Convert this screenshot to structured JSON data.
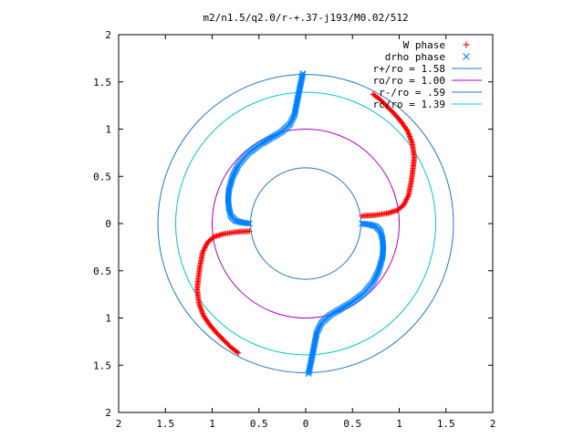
{
  "chart_data": {
    "type": "scatter",
    "title": "m2/n1.5/q2.0/r-+.37-j193/M0.02/512",
    "xlim": [
      -2,
      2
    ],
    "ylim": [
      -2,
      2
    ],
    "x_ticks": [
      {
        "value": -2,
        "label": "2"
      },
      {
        "value": -1.5,
        "label": "1.5"
      },
      {
        "value": -1,
        "label": "1"
      },
      {
        "value": -0.5,
        "label": "0.5"
      },
      {
        "value": 0,
        "label": "0"
      },
      {
        "value": 0.5,
        "label": "0.5"
      },
      {
        "value": 1,
        "label": "1"
      },
      {
        "value": 1.5,
        "label": "1.5"
      },
      {
        "value": 2,
        "label": "2"
      }
    ],
    "y_ticks": [
      {
        "value": 2,
        "label": "2"
      },
      {
        "value": 1.5,
        "label": "1.5"
      },
      {
        "value": 1,
        "label": "1"
      },
      {
        "value": 0.5,
        "label": "0.5"
      },
      {
        "value": 0,
        "label": "0"
      },
      {
        "value": -0.5,
        "label": "0.5"
      },
      {
        "value": -1,
        "label": "1"
      },
      {
        "value": -1.5,
        "label": "1.5"
      },
      {
        "value": -2,
        "label": "2"
      }
    ],
    "legend_position": "top-right",
    "series": [
      {
        "name": "W phase",
        "marker": "+",
        "color": "#ff0000",
        "branches": [
          [
            [
              0.6,
              0.08
            ],
            [
              0.75,
              0.09
            ],
            [
              0.88,
              0.11
            ],
            [
              0.98,
              0.14
            ],
            [
              1.05,
              0.2
            ],
            [
              1.1,
              0.3
            ],
            [
              1.13,
              0.45
            ],
            [
              1.15,
              0.6
            ],
            [
              1.16,
              0.7
            ],
            [
              1.14,
              0.85
            ],
            [
              1.09,
              0.98
            ],
            [
              1.02,
              1.08
            ],
            [
              0.95,
              1.16
            ],
            [
              0.86,
              1.25
            ],
            [
              0.8,
              1.31
            ],
            [
              0.76,
              1.34
            ],
            [
              0.72,
              1.37
            ]
          ],
          [
            [
              -0.6,
              -0.08
            ],
            [
              -0.75,
              -0.09
            ],
            [
              -0.88,
              -0.11
            ],
            [
              -0.98,
              -0.14
            ],
            [
              -1.05,
              -0.2
            ],
            [
              -1.1,
              -0.3
            ],
            [
              -1.13,
              -0.45
            ],
            [
              -1.15,
              -0.6
            ],
            [
              -1.16,
              -0.7
            ],
            [
              -1.14,
              -0.85
            ],
            [
              -1.09,
              -0.98
            ],
            [
              -1.02,
              -1.08
            ],
            [
              -0.95,
              -1.16
            ],
            [
              -0.86,
              -1.25
            ],
            [
              -0.8,
              -1.31
            ],
            [
              -0.76,
              -1.34
            ],
            [
              -0.72,
              -1.37
            ]
          ]
        ]
      },
      {
        "name": "drho phase",
        "marker": "x",
        "color": "#0080ff",
        "branches": [
          [
            [
              -0.6,
              0.0
            ],
            [
              -0.68,
              0.01
            ],
            [
              -0.75,
              0.03
            ],
            [
              -0.8,
              0.08
            ],
            [
              -0.82,
              0.16
            ],
            [
              -0.83,
              0.26
            ],
            [
              -0.82,
              0.36
            ],
            [
              -0.78,
              0.5
            ],
            [
              -0.72,
              0.62
            ],
            [
              -0.62,
              0.74
            ],
            [
              -0.5,
              0.83
            ],
            [
              -0.38,
              0.9
            ],
            [
              -0.26,
              0.97
            ],
            [
              -0.17,
              1.05
            ],
            [
              -0.12,
              1.15
            ],
            [
              -0.09,
              1.3
            ],
            [
              -0.06,
              1.45
            ],
            [
              -0.03,
              1.59
            ]
          ],
          [
            [
              0.6,
              0.0
            ],
            [
              0.68,
              -0.01
            ],
            [
              0.75,
              -0.03
            ],
            [
              0.8,
              -0.08
            ],
            [
              0.82,
              -0.16
            ],
            [
              0.83,
              -0.26
            ],
            [
              0.82,
              -0.36
            ],
            [
              0.78,
              -0.5
            ],
            [
              0.72,
              -0.62
            ],
            [
              0.62,
              -0.74
            ],
            [
              0.5,
              -0.83
            ],
            [
              0.38,
              -0.9
            ],
            [
              0.26,
              -0.97
            ],
            [
              0.17,
              -1.05
            ],
            [
              0.12,
              -1.15
            ],
            [
              0.09,
              -1.3
            ],
            [
              0.06,
              -1.45
            ],
            [
              0.03,
              -1.59
            ]
          ]
        ]
      },
      {
        "name": "r+/ro = 1.58",
        "type": "circle",
        "radius": 1.58,
        "color": "#1f77c8"
      },
      {
        "name": "ro/ro = 1.00",
        "type": "circle",
        "radius": 1.0,
        "color": "#b000c8"
      },
      {
        "name": "r-/ro = .59",
        "type": "circle",
        "radius": 0.59,
        "color": "#1f77c8"
      },
      {
        "name": "rc/ro = 1.39",
        "type": "circle",
        "radius": 1.39,
        "color": "#00c8d2"
      }
    ]
  }
}
